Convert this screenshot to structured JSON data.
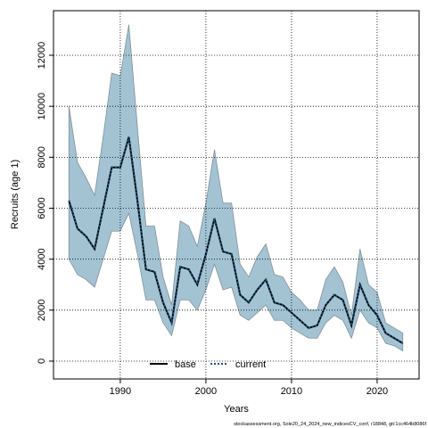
{
  "chart_data": {
    "type": "band-line",
    "x_label": "Years",
    "y_label": "Recruits (age 1)",
    "footer": "stockassessment.org, Sole20_24_2024_new_indicesCV_conf, r18848, git:1cc464b8086f",
    "x": [
      1984,
      1985,
      1986,
      1987,
      1988,
      1989,
      1990,
      1991,
      1992,
      1993,
      1994,
      1995,
      1996,
      1997,
      1998,
      1999,
      2000,
      2001,
      2002,
      2003,
      2004,
      2005,
      2006,
      2007,
      2008,
      2009,
      2010,
      2011,
      2012,
      2013,
      2014,
      2015,
      2016,
      2017,
      2018,
      2019,
      2020,
      2021,
      2022,
      2023
    ],
    "series": [
      {
        "name": "base",
        "color": "#000000",
        "values": [
          6300,
          5200,
          4900,
          4400,
          6000,
          7600,
          7600,
          8800,
          6300,
          3600,
          3500,
          2300,
          1500,
          3700,
          3600,
          3000,
          4200,
          5600,
          4300,
          4200,
          2600,
          2300,
          2800,
          3200,
          2300,
          2200,
          1900,
          1600,
          1300,
          1400,
          2200,
          2600,
          2400,
          1400,
          3000,
          2200,
          1800,
          1100,
          900,
          700
        ]
      },
      {
        "name": "current",
        "color": "#1f4e79",
        "band_color": "#a3c3d3",
        "values": [
          6300,
          5200,
          4900,
          4400,
          6000,
          7600,
          7600,
          8800,
          6300,
          3600,
          3500,
          2300,
          1500,
          3700,
          3600,
          3000,
          4200,
          5600,
          4300,
          4200,
          2600,
          2300,
          2800,
          3200,
          2300,
          2200,
          1900,
          1600,
          1300,
          1400,
          2200,
          2600,
          2400,
          1400,
          3000,
          2200,
          1800,
          1100,
          900,
          700
        ],
        "lower": [
          4000,
          3400,
          3200,
          2900,
          4000,
          5100,
          5100,
          5800,
          4200,
          2400,
          2400,
          1500,
          1000,
          2400,
          2400,
          2000,
          2800,
          3800,
          2800,
          2900,
          1800,
          1600,
          1900,
          2200,
          1600,
          1600,
          1300,
          1100,
          900,
          900,
          1500,
          1800,
          1600,
          900,
          2000,
          1500,
          1300,
          700,
          600,
          400
        ],
        "upper": [
          10000,
          7800,
          7200,
          6500,
          8800,
          11300,
          11200,
          13200,
          9200,
          5300,
          5300,
          3300,
          2200,
          5500,
          5300,
          4500,
          6200,
          8300,
          6200,
          6200,
          3800,
          3300,
          4100,
          4600,
          3400,
          3300,
          2700,
          2400,
          2000,
          2000,
          3200,
          3700,
          3100,
          1800,
          4400,
          3000,
          2700,
          1500,
          1300,
          1100
        ]
      }
    ],
    "xlim": [
      1982.2,
      2024.9
    ],
    "ylim": [
      -700,
      13750
    ],
    "xticks": [
      1990,
      2000,
      2010,
      2020
    ],
    "yticks": [
      0,
      2000,
      4000,
      6000,
      8000,
      10000,
      12000
    ],
    "grid": true
  }
}
